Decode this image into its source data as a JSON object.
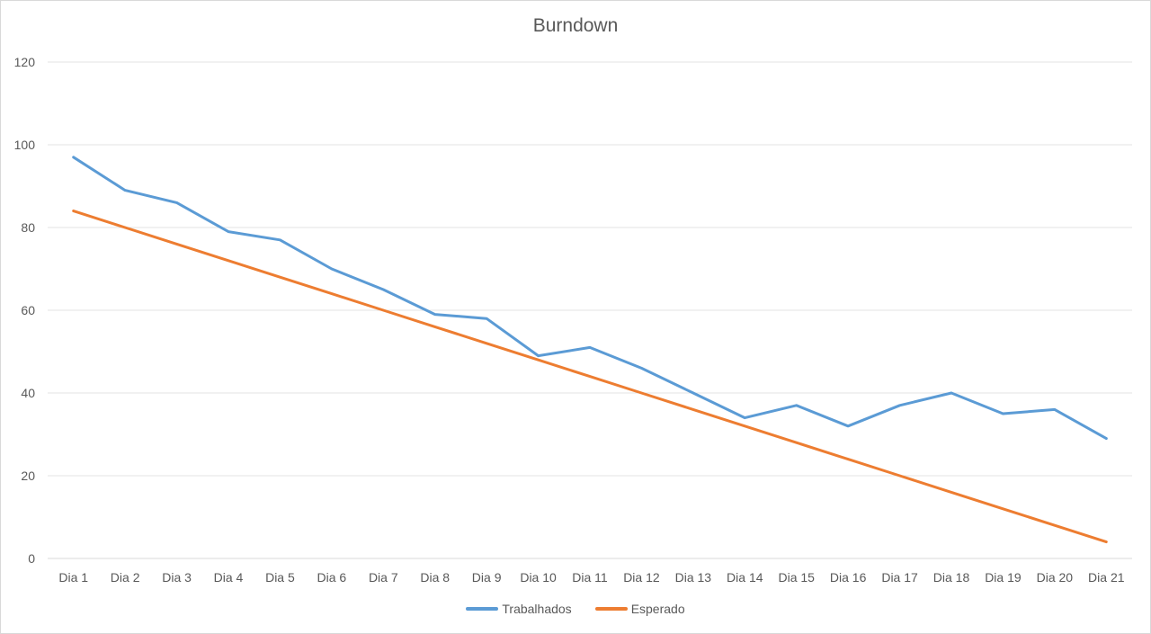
{
  "chart_data": {
    "type": "line",
    "title": "Burndown",
    "xlabel": "",
    "ylabel": "",
    "ylim": [
      0,
      120
    ],
    "y_ticks": [
      0,
      20,
      40,
      60,
      80,
      100,
      120
    ],
    "grid": true,
    "legend_position": "bottom",
    "categories": [
      "Dia 1",
      "Dia 2",
      "Dia 3",
      "Dia 4",
      "Dia 5",
      "Dia 6",
      "Dia 7",
      "Dia 8",
      "Dia 9",
      "Dia 10",
      "Dia 11",
      "Dia 12",
      "Dia 13",
      "Dia 14",
      "Dia 15",
      "Dia 16",
      "Dia 17",
      "Dia 18",
      "Dia 19",
      "Dia 20",
      "Dia 21"
    ],
    "series": [
      {
        "name": "Trabalhados",
        "color": "#5b9bd5",
        "values": [
          97,
          89,
          86,
          79,
          77,
          70,
          65,
          59,
          58,
          49,
          51,
          46,
          40,
          34,
          37,
          32,
          37,
          40,
          35,
          36,
          29
        ]
      },
      {
        "name": "Esperado",
        "color": "#ed7d31",
        "values": [
          84,
          80,
          76,
          72,
          68,
          64,
          60,
          56,
          52,
          48,
          44,
          40,
          36,
          32,
          28,
          24,
          20,
          16,
          12,
          8,
          4
        ]
      }
    ]
  }
}
